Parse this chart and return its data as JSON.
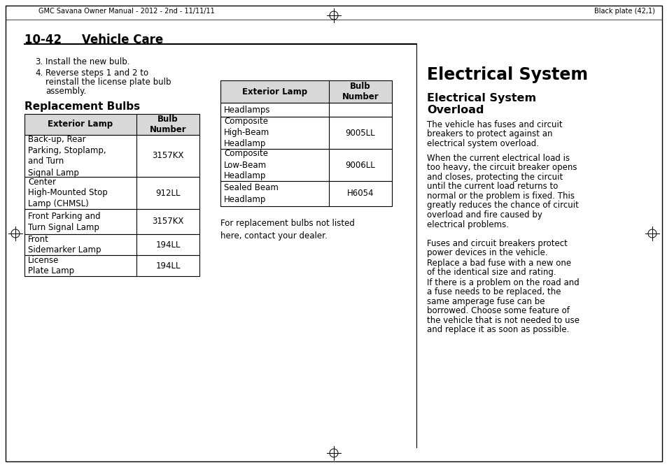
{
  "background_color": "#ffffff",
  "header_text_left": "GMC Savana Owner Manual - 2012 - 2nd - 11/11/11",
  "header_text_right": "Black plate (42,1)",
  "section_title": "10-42     Vehicle Care",
  "replacement_bulbs_title": "Replacement Bulbs",
  "left_table_header": [
    "Exterior Lamp",
    "Bulb\nNumber"
  ],
  "left_table_rows": [
    [
      "Back-up, Rear\nParking, Stoplamp,\nand Turn\nSignal Lamp",
      "3157KX"
    ],
    [
      "Center\nHigh-Mounted Stop\nLamp (CHMSL)",
      "912LL"
    ],
    [
      "Front Parking and\nTurn Signal Lamp",
      "3157KX"
    ],
    [
      "Front\nSidemarker Lamp",
      "194LL"
    ],
    [
      "License\nPlate Lamp",
      "194LL"
    ]
  ],
  "right_table_header": [
    "Exterior Lamp",
    "Bulb\nNumber"
  ],
  "right_table_rows": [
    [
      "Headlamps",
      ""
    ],
    [
      "Composite\nHigh-Beam\nHeadlamp",
      "9005LL"
    ],
    [
      "Composite\nLow-Beam\nHeadlamp",
      "9006LL"
    ],
    [
      "Sealed Beam\nHeadlamp",
      "H6054"
    ]
  ],
  "note_text": "For replacement bulbs not listed\nhere, contact your dealer.",
  "right_section_title": "Electrical System",
  "right_section_subtitle1": "Electrical System",
  "right_section_subtitle2": "Overload",
  "right_section_paragraphs": [
    "The vehicle has fuses and circuit\nbreakers to protect against an\nelectrical system overload.",
    "When the current electrical load is\ntoo heavy, the circuit breaker opens\nand closes, protecting the circuit\nuntil the current load returns to\nnormal or the problem is fixed. This\ngreatly reduces the chance of circuit\noverload and fire caused by\nelectrical problems.",
    "Fuses and circuit breakers protect\npower devices in the vehicle.",
    "Replace a bad fuse with a new one\nof the identical size and rating.",
    "If there is a problem on the road and\na fuse needs to be replaced, the\nsame amperage fuse can be\nborrowed. Choose some feature of\nthe vehicle that is not needed to use\nand replace it as soon as possible."
  ]
}
